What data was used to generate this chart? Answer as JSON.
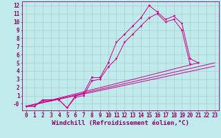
{
  "bg_color": "#c0eaec",
  "line_color": "#cc0088",
  "marker_color": "#cc0088",
  "grid_color": "#a0c8cc",
  "axis_color": "#880066",
  "xlabel": "Windchill (Refroidissement éolien,°C)",
  "xlim": [
    -0.5,
    23.5
  ],
  "ylim": [
    -0.8,
    12.5
  ],
  "xticks": [
    0,
    1,
    2,
    3,
    4,
    5,
    6,
    7,
    8,
    9,
    10,
    11,
    12,
    13,
    14,
    15,
    16,
    17,
    18,
    19,
    20,
    21,
    22,
    23
  ],
  "yticks": [
    0,
    1,
    2,
    3,
    4,
    5,
    6,
    7,
    8,
    9,
    10,
    11,
    12
  ],
  "ytick_labels": [
    "-0",
    "1",
    "2",
    "3",
    "4",
    "5",
    "6",
    "7",
    "8",
    "9",
    "10",
    "11",
    "12"
  ],
  "curve1_x": [
    0,
    1,
    2,
    3,
    4,
    5,
    6,
    7,
    8,
    9,
    10,
    11,
    12,
    13,
    14,
    15,
    16,
    17,
    18,
    19,
    20,
    21
  ],
  "curve1_y": [
    -0.3,
    -0.3,
    0.5,
    0.5,
    0.5,
    -0.5,
    1.0,
    1.3,
    3.2,
    3.2,
    5.0,
    7.5,
    8.5,
    9.5,
    10.5,
    12.0,
    11.2,
    10.3,
    10.7,
    9.8,
    5.5,
    5.0
  ],
  "curve2_x": [
    0,
    1,
    2,
    3,
    4,
    5,
    6,
    7,
    8,
    9,
    10,
    11,
    12,
    13,
    14,
    15,
    16,
    17,
    18,
    19,
    20
  ],
  "curve2_y": [
    -0.3,
    -0.3,
    0.4,
    0.5,
    0.5,
    -0.5,
    0.8,
    1.0,
    2.8,
    3.0,
    4.5,
    5.5,
    7.5,
    8.5,
    9.5,
    10.5,
    11.0,
    10.0,
    10.3,
    9.0,
    4.8
  ],
  "line1_x": [
    0,
    23
  ],
  "line1_y": [
    -0.3,
    5.0
  ],
  "line2_x": [
    0,
    23
  ],
  "line2_y": [
    -0.3,
    4.6
  ],
  "line3_x": [
    0,
    21
  ],
  "line3_y": [
    -0.3,
    5.0
  ],
  "font_family": "monospace",
  "xlabel_fontsize": 6.5,
  "tick_fontsize": 5.5,
  "tick_color": "#880066",
  "spine_color": "#880066",
  "lw": 0.7,
  "ms": 2.0
}
